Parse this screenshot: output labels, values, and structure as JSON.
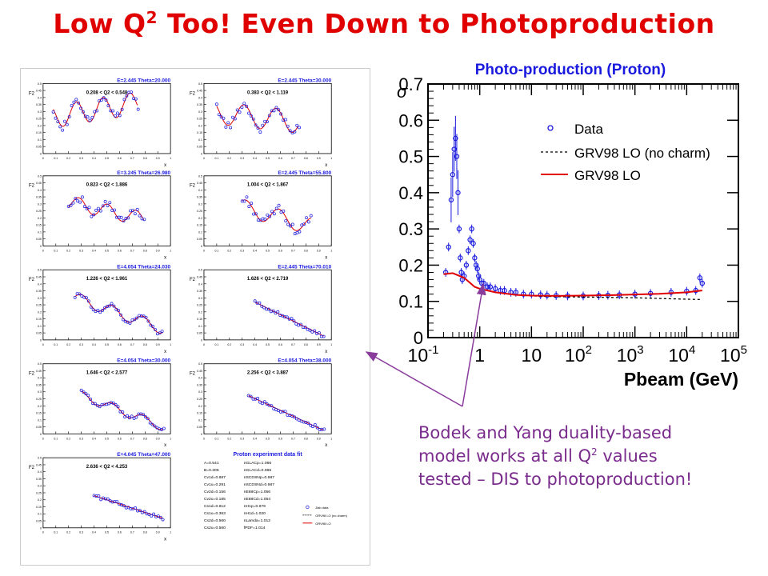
{
  "slide": {
    "title_main": "Low Q",
    "title_sup": "2",
    "title_rest": " Too! Even Down to Photoproduction",
    "annotation_line1": "Bodek and Yang duality-based",
    "annotation_line2a": "model works at all Q",
    "annotation_line2sup": "2",
    "annotation_line2b": " values",
    "annotation_line3": "tested – DIS to photoproduction!",
    "colors": {
      "title": "#e00000",
      "annotation": "#7a2c8c",
      "plot_title": "#1a1adf",
      "model": "#e00000",
      "data": "#1a1adf"
    }
  },
  "small_panels": [
    {
      "header": "E=2.445 Theta=20.000",
      "q2": "0.208 < Q2 < 0.548",
      "ylabel": "F2",
      "xlabel": "x"
    },
    {
      "header": "E=2.445 Theta=30.000",
      "q2": "0.383 < Q2 < 1.119",
      "ylabel": "F2",
      "xlabel": "x"
    },
    {
      "header": "E=3.245 Theta=26.980",
      "q2": "0.823 < Q2 < 1.886",
      "ylabel": "F2",
      "xlabel": "x"
    },
    {
      "header": "E=2.445 Theta=55.800",
      "q2": "1.004 < Q2 < 1.867",
      "ylabel": "F2",
      "xlabel": "x"
    },
    {
      "header": "E=4.054 Theta=24.030",
      "q2": "1.226 < Q2 < 1.961",
      "ylabel": "F2",
      "xlabel": "x"
    },
    {
      "header": "E=2.445 Theta=70.010",
      "q2": "1.626 < Q2 < 2.719",
      "ylabel": "F2",
      "xlabel": "x"
    },
    {
      "header": "E=4.054 Theta=30.000",
      "q2": "1.646 < Q2 < 2.577",
      "ylabel": "F2",
      "xlabel": "x"
    },
    {
      "header": "E=4.054 Theta=38.000",
      "q2": "2.256 < Q2 < 3.887",
      "ylabel": "F2",
      "xlabel": "x"
    },
    {
      "header": "E=4.045 Theta=47.000",
      "q2": "2.636 < Q2 < 4.253",
      "ylabel": "F2",
      "xlabel": "x"
    }
  ],
  "small_x_ticks": [
    "0",
    "0.1",
    "0.2",
    "0.3",
    "0.4",
    "0.5",
    "0.6",
    "0.7",
    "0.8",
    "0.9",
    "1"
  ],
  "small_y_ticks": [
    "0",
    "0.05",
    "0.1",
    "0.15",
    "0.2",
    "0.25",
    "0.3",
    "0.35",
    "0.4",
    "0.45",
    "0.5"
  ],
  "fit_box": {
    "title": "Proton experiment data fit",
    "params_left": [
      "A=0.541",
      "B=0.305",
      "Cv1d=0.887",
      "Cv1u=0.291",
      "Cv2d=0.156",
      "Cv2u=0.185",
      "Cs1d=0.812",
      "Cs1u=0.363",
      "Cs2d=0.560",
      "Cs2u=0.560"
    ],
    "params_right": [
      "nGLACp=1.066",
      "nGLACd=0.966",
      "nSCDSNp=0.987",
      "nSCDSNd=0.987",
      "nE88Cp=1.056",
      "nE88Cd=1.054",
      "nH1p=0.979",
      "nH1d=1.020",
      "nLamda=1.012",
      "fPDF=1.014"
    ],
    "legend": [
      "Jlab data",
      "GRV98 LO (no charm)",
      "GRV98 LO"
    ]
  },
  "chart_data": {
    "type": "scatter",
    "title": "Photo-production (Proton)",
    "xlabel": "Pbeam (GeV)",
    "ylabel": "σ",
    "xscale": "log",
    "xlim": [
      0.1,
      100000
    ],
    "ylim": [
      0,
      0.7
    ],
    "x_tick_labels": [
      "10^-1",
      "1",
      "10",
      "10^2",
      "10^3",
      "10^4",
      "10^5"
    ],
    "y_tick_labels": [
      "0",
      "0.1",
      "0.2",
      "0.3",
      "0.4",
      "0.5",
      "0.6",
      "0.7"
    ],
    "legend_position": "top-right",
    "series": [
      {
        "name": "Data",
        "style": "markers",
        "x": [
          0.22,
          0.25,
          0.28,
          0.3,
          0.32,
          0.34,
          0.36,
          0.38,
          0.4,
          0.42,
          0.44,
          0.46,
          0.5,
          0.55,
          0.6,
          0.65,
          0.7,
          0.75,
          0.8,
          0.85,
          0.9,
          0.95,
          1.0,
          1.1,
          1.2,
          1.4,
          1.6,
          2,
          2.5,
          3,
          4,
          5,
          7,
          10,
          15,
          20,
          30,
          50,
          100,
          200,
          300,
          500,
          1000,
          2000,
          5000,
          10000,
          15000,
          18000,
          20000
        ],
        "y": [
          0.18,
          0.25,
          0.38,
          0.45,
          0.52,
          0.55,
          0.5,
          0.4,
          0.3,
          0.22,
          0.18,
          0.16,
          0.17,
          0.2,
          0.24,
          0.27,
          0.3,
          0.26,
          0.22,
          0.2,
          0.19,
          0.17,
          0.16,
          0.15,
          0.15,
          0.14,
          0.14,
          0.135,
          0.13,
          0.13,
          0.125,
          0.125,
          0.12,
          0.12,
          0.118,
          0.117,
          0.116,
          0.115,
          0.115,
          0.116,
          0.117,
          0.118,
          0.12,
          0.122,
          0.125,
          0.128,
          0.13,
          0.165,
          0.15
        ]
      },
      {
        "name": "GRV98 LO (no charm)",
        "style": "dashed",
        "x": [
          0.2,
          0.3,
          0.5,
          0.8,
          1,
          2,
          5,
          10,
          30,
          100,
          300,
          1000,
          3000,
          10000,
          20000
        ],
        "y": [
          0.175,
          0.178,
          0.165,
          0.14,
          0.135,
          0.125,
          0.118,
          0.115,
          0.113,
          0.112,
          0.111,
          0.11,
          0.108,
          0.106,
          0.105
        ]
      },
      {
        "name": "GRV98 LO",
        "style": "solid",
        "x": [
          0.2,
          0.3,
          0.5,
          0.8,
          1,
          2,
          5,
          10,
          30,
          100,
          300,
          1000,
          3000,
          10000,
          15000,
          20000
        ],
        "y": [
          0.175,
          0.178,
          0.165,
          0.14,
          0.135,
          0.125,
          0.118,
          0.116,
          0.115,
          0.116,
          0.117,
          0.119,
          0.121,
          0.125,
          0.128,
          0.13
        ]
      }
    ]
  }
}
